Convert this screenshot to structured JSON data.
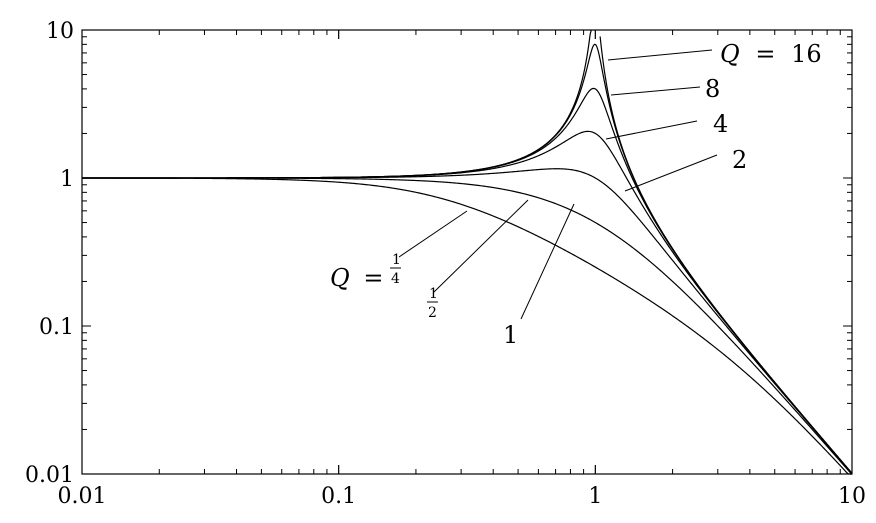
{
  "chart_data": {
    "type": "line",
    "x_scale": "log",
    "y_scale": "log",
    "xlim": [
      0.01,
      10
    ],
    "ylim": [
      0.01,
      10
    ],
    "x_ticks": [
      "0.01",
      "0.1",
      "1",
      "10"
    ],
    "y_ticks": [
      "0.01",
      "0.1",
      "1",
      "10"
    ],
    "grid": false,
    "series": [
      {
        "q": 0.25,
        "label": "1/4"
      },
      {
        "q": 0.5,
        "label": "1/2"
      },
      {
        "q": 1,
        "label": "1"
      },
      {
        "q": 2,
        "label": "2"
      },
      {
        "q": 4,
        "label": "4"
      },
      {
        "q": 8,
        "label": "8"
      },
      {
        "q": 16,
        "label": "16"
      }
    ],
    "annotations": {
      "q_prefix": "Q",
      "equals": "=",
      "frac_num": "1",
      "frac_den_quarter": "4",
      "frac_den_half": "2",
      "one": "1",
      "two": "2",
      "four": "4",
      "eight": "8",
      "sixteen": "16"
    }
  }
}
